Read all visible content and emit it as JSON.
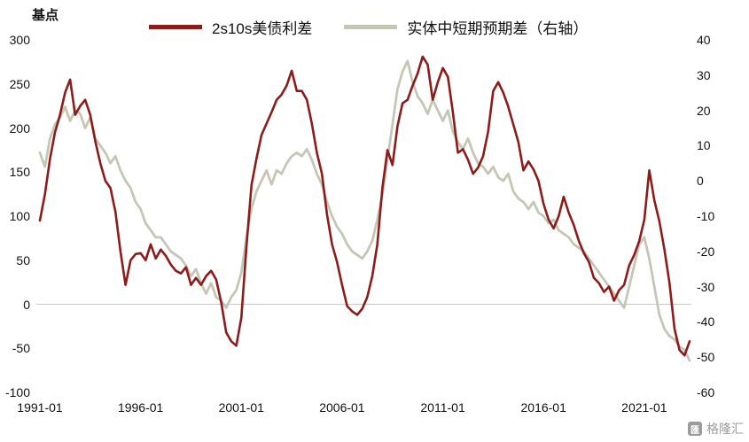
{
  "watermark": {
    "text": "格隆汇",
    "logo_char": "匯"
  },
  "chart_data": {
    "type": "line",
    "title": "",
    "unit_left": "基点",
    "legend_position": "top",
    "grid": "zero-line-only",
    "x_ticks": [
      "1991-01",
      "1996-01",
      "2001-01",
      "2006-01",
      "2011-01",
      "2016-01",
      "2021-01"
    ],
    "x_domain": [
      1991.0,
      2023.25
    ],
    "x_start": 1991.0,
    "x_step": 0.25,
    "left_axis": {
      "min": -100,
      "max": 300,
      "ticks": [
        300,
        250,
        200,
        150,
        100,
        50,
        0,
        -50,
        -100
      ]
    },
    "right_axis": {
      "min": -60,
      "max": 40,
      "ticks": [
        40,
        30,
        20,
        10,
        0,
        -10,
        -20,
        -30,
        -40,
        -50,
        -60
      ]
    },
    "zero_line_color": "#c9c9c9",
    "series": [
      {
        "name": "2s10s美债利差",
        "axis": "left",
        "color": "#8C1C1C",
        "width": 2.6,
        "values": [
          95,
          125,
          165,
          195,
          215,
          240,
          255,
          215,
          225,
          232,
          215,
          185,
          160,
          140,
          132,
          105,
          60,
          22,
          50,
          57,
          58,
          50,
          68,
          52,
          62,
          55,
          45,
          38,
          35,
          42,
          22,
          30,
          22,
          32,
          38,
          28,
          2,
          -32,
          -42,
          -47,
          -15,
          65,
          135,
          165,
          192,
          205,
          218,
          232,
          238,
          248,
          265,
          242,
          242,
          232,
          205,
          172,
          148,
          102,
          68,
          48,
          22,
          -2,
          -8,
          -12,
          -5,
          8,
          32,
          68,
          132,
          175,
          158,
          202,
          228,
          232,
          248,
          262,
          281,
          272,
          232,
          252,
          268,
          258,
          218,
          172,
          176,
          164,
          148,
          155,
          168,
          196,
          242,
          252,
          240,
          224,
          204,
          184,
          152,
          162,
          153,
          140,
          114,
          96,
          86,
          100,
          122,
          104,
          90,
          72,
          58,
          48,
          30,
          24,
          14,
          20,
          4,
          16,
          22,
          44,
          56,
          72,
          96,
          152,
          118,
          94,
          62,
          24,
          -28,
          -52,
          -58,
          -42
        ]
      },
      {
        "name": "实体中短期预期差（右轴）",
        "axis": "right",
        "color": "#C6C6B6",
        "width": 2.8,
        "values": [
          8,
          4,
          12,
          16,
          18,
          21,
          17,
          20,
          19,
          15,
          18,
          12,
          10,
          8,
          5,
          7,
          3,
          0,
          -2,
          -6,
          -8,
          -12,
          -14,
          -16,
          -16,
          -18,
          -20,
          -21,
          -22,
          -24,
          -27,
          -25,
          -29,
          -32,
          -29,
          -33,
          -34,
          -36,
          -33,
          -31,
          -26,
          -16,
          -8,
          -3,
          0,
          3,
          -1,
          3,
          2,
          5,
          7,
          8,
          7,
          9,
          6,
          2,
          -1,
          -6,
          -10,
          -13,
          -15,
          -18,
          -20,
          -21,
          -22,
          -20,
          -17,
          -11,
          -4,
          6,
          16,
          26,
          31,
          34,
          28,
          24,
          22,
          19,
          23,
          20,
          17,
          20,
          14,
          11,
          9,
          12,
          8,
          5,
          4,
          2,
          4,
          1,
          0,
          2,
          -3,
          -5,
          -6,
          -8,
          -6,
          -9,
          -10,
          -12,
          -11,
          -14,
          -15,
          -16,
          -18,
          -19,
          -20,
          -22,
          -24,
          -26,
          -28,
          -30,
          -32,
          -34,
          -36,
          -30,
          -24,
          -18,
          -16,
          -22,
          -30,
          -38,
          -42,
          -44,
          -45,
          -47,
          -48,
          -51
        ]
      }
    ]
  }
}
